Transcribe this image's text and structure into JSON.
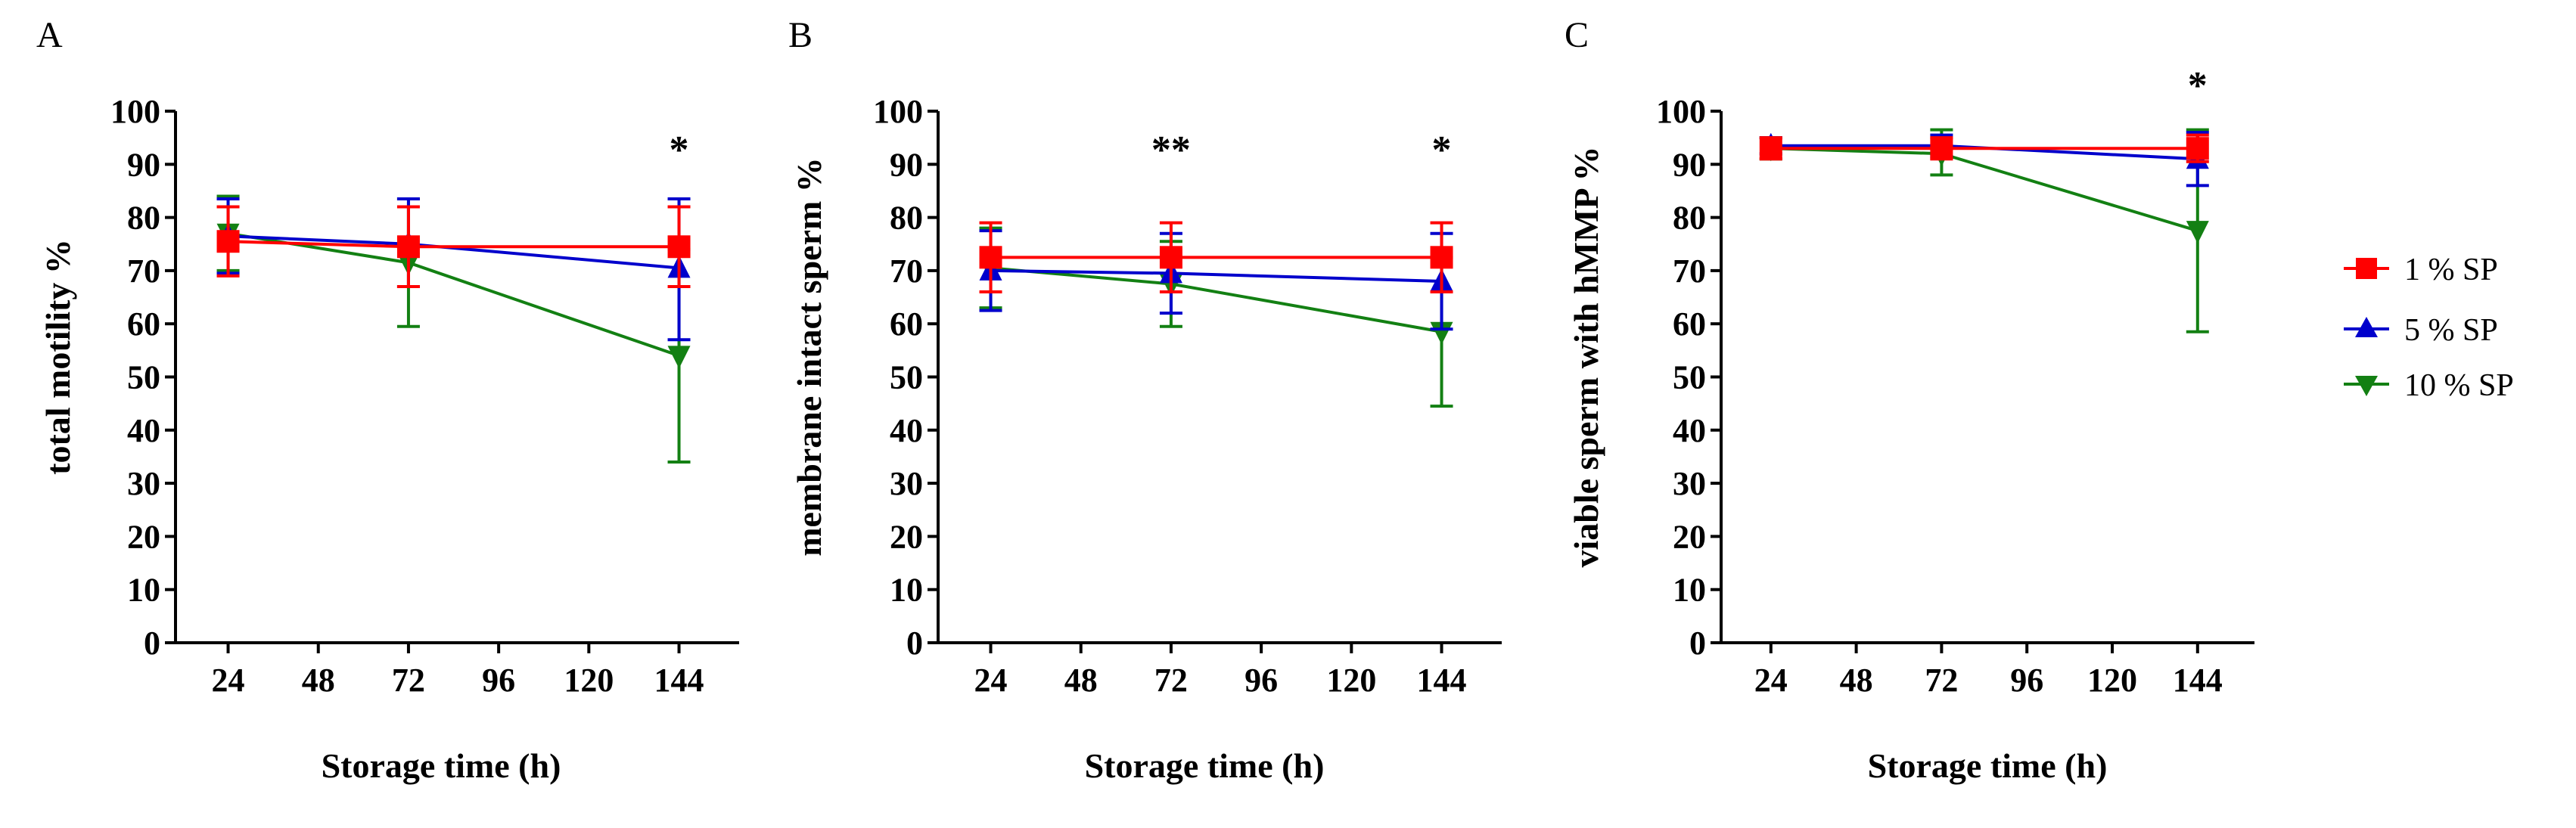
{
  "figure": {
    "legend": [
      {
        "label": "1 % SP",
        "color": "#ff0000",
        "marker": "square"
      },
      {
        "label": "5 % SP",
        "color": "#0000cc",
        "marker": "triangle-up"
      },
      {
        "label": "10 % SP",
        "color": "#138013",
        "marker": "triangle-down"
      }
    ],
    "panels": [
      {
        "letter": "A",
        "ylabel": "total motility %",
        "xlabel": "Storage time (h)"
      },
      {
        "letter": "B",
        "ylabel": "membrane intact sperm %",
        "xlabel": "Storage time (h)"
      },
      {
        "letter": "C",
        "ylabel": "viable sperm with hMMP %",
        "xlabel": "Storage time (h)"
      }
    ]
  },
  "chart_data": [
    {
      "type": "line",
      "title": "A",
      "xlabel": "Storage time (h)",
      "ylabel": "total motility %",
      "xticks": [
        24,
        48,
        72,
        96,
        120,
        144
      ],
      "yticks": [
        0,
        10,
        20,
        30,
        40,
        50,
        60,
        70,
        80,
        90,
        100
      ],
      "xlim": [
        10,
        160
      ],
      "ylim": [
        0,
        100
      ],
      "grid": false,
      "legend_position": "right",
      "x": [
        24,
        72,
        144
      ],
      "series": [
        {
          "name": "1 % SP",
          "color": "#ff0000",
          "marker": "square",
          "values": [
            75.5,
            74.5,
            74.5
          ],
          "err_low": [
            69,
            67,
            67
          ],
          "err_high": [
            82,
            82,
            82
          ]
        },
        {
          "name": "5 % SP",
          "color": "#0000cc",
          "marker": "triangle-up",
          "values": [
            76.5,
            75,
            70.5
          ],
          "err_low": [
            69.5,
            67,
            57
          ],
          "err_high": [
            83.5,
            83.5,
            83.5
          ]
        },
        {
          "name": "10 % SP",
          "color": "#138013",
          "marker": "triangle-down",
          "values": [
            77,
            71.5,
            54
          ],
          "err_low": [
            70,
            59.5,
            34
          ],
          "err_high": [
            84,
            83.5,
            74
          ]
        }
      ],
      "annotations": [
        {
          "x": 144,
          "text": "*"
        }
      ]
    },
    {
      "type": "line",
      "title": "B",
      "xlabel": "Storage time (h)",
      "ylabel": "membrane intact sperm %",
      "xticks": [
        24,
        48,
        72,
        96,
        120,
        144
      ],
      "yticks": [
        0,
        10,
        20,
        30,
        40,
        50,
        60,
        70,
        80,
        90,
        100
      ],
      "xlim": [
        10,
        160
      ],
      "ylim": [
        0,
        100
      ],
      "grid": false,
      "legend_position": "right",
      "x": [
        24,
        72,
        144
      ],
      "series": [
        {
          "name": "1 % SP",
          "color": "#ff0000",
          "marker": "square",
          "values": [
            72.5,
            72.5,
            72.5
          ],
          "err_low": [
            66,
            66,
            66
          ],
          "err_high": [
            79,
            79,
            79
          ]
        },
        {
          "name": "5 % SP",
          "color": "#0000cc",
          "marker": "triangle-up",
          "values": [
            70,
            69.5,
            68
          ],
          "err_low": [
            62.5,
            62,
            59
          ],
          "err_high": [
            77.5,
            77,
            77
          ]
        },
        {
          "name": "10 % SP",
          "color": "#138013",
          "marker": "triangle-down",
          "values": [
            70.5,
            67.5,
            58.5
          ],
          "err_low": [
            63,
            59.5,
            44.5
          ],
          "err_high": [
            78,
            75.5,
            72.5
          ]
        }
      ],
      "annotations": [
        {
          "x": 72,
          "text": "**"
        },
        {
          "x": 144,
          "text": "*"
        }
      ]
    },
    {
      "type": "line",
      "title": "C",
      "xlabel": "Storage time (h)",
      "ylabel": "viable sperm with hMMP %",
      "xticks": [
        24,
        48,
        72,
        96,
        120,
        144
      ],
      "yticks": [
        0,
        10,
        20,
        30,
        40,
        50,
        60,
        70,
        80,
        90,
        100
      ],
      "xlim": [
        10,
        160
      ],
      "ylim": [
        0,
        100
      ],
      "grid": false,
      "legend_position": "right",
      "x": [
        24,
        72,
        144
      ],
      "series": [
        {
          "name": "1 % SP",
          "color": "#ff0000",
          "marker": "square",
          "values": [
            93,
            93,
            93
          ],
          "err_low": [
            91,
            91,
            90.5
          ],
          "err_high": [
            95,
            95,
            95.5
          ]
        },
        {
          "name": "5 % SP",
          "color": "#0000cc",
          "marker": "triangle-up",
          "values": [
            93.5,
            93.5,
            91
          ],
          "err_low": [
            92,
            91.5,
            86
          ],
          "err_high": [
            95,
            95.5,
            96
          ]
        },
        {
          "name": "10 % SP",
          "color": "#138013",
          "marker": "triangle-down",
          "values": [
            93,
            92,
            77.5
          ],
          "err_low": [
            91,
            88,
            58.5
          ],
          "err_high": [
            95,
            96.5,
            96.5
          ]
        }
      ],
      "annotations": [
        {
          "x": 144,
          "text": "*"
        }
      ]
    }
  ]
}
